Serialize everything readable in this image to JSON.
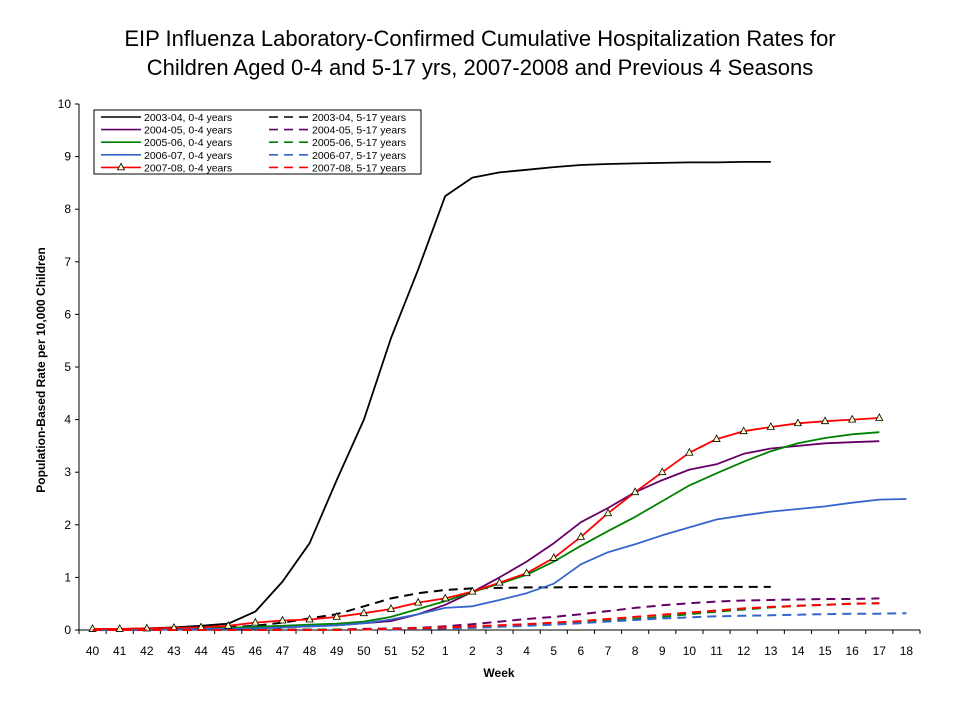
{
  "title_line1": "EIP Influenza Laboratory-Confirmed Cumulative Hospitalization Rates for",
  "title_line2": "Children Aged 0-4 and 5-17 yrs, 2007-2008 and Previous 4 Seasons",
  "chart_data": {
    "type": "line",
    "title": "EIP Influenza Laboratory-Confirmed Cumulative Hospitalization Rates for Children Aged 0-4 and 5-17 yrs, 2007-2008 and Previous 4 Seasons",
    "xlabel": "Week",
    "ylabel": "Population-Based Rate per 10,000 Children",
    "categories": [
      "40",
      "41",
      "42",
      "43",
      "44",
      "45",
      "46",
      "47",
      "48",
      "49",
      "50",
      "51",
      "52",
      "1",
      "2",
      "3",
      "4",
      "5",
      "6",
      "7",
      "8",
      "9",
      "10",
      "11",
      "12",
      "13",
      "14",
      "15",
      "16",
      "17",
      "18"
    ],
    "ylim": [
      0,
      10
    ],
    "yticks": [
      "0",
      "1",
      "2",
      "3",
      "4",
      "5",
      "6",
      "7",
      "8",
      "9",
      "10"
    ],
    "grid": false,
    "legend_position": "top-left",
    "series": [
      {
        "name": "2003-04, 0-4 years",
        "color": "#000000",
        "dash": "solid",
        "marker": "none",
        "values": [
          0.01,
          0.02,
          0.03,
          0.05,
          0.08,
          0.12,
          0.35,
          0.92,
          1.65,
          2.85,
          4.0,
          5.55,
          6.85,
          8.25,
          8.6,
          8.7,
          8.75,
          8.8,
          8.84,
          8.86,
          8.87,
          8.88,
          8.89,
          8.89,
          8.9,
          8.9,
          null,
          null,
          null,
          null,
          null
        ]
      },
      {
        "name": "2003-04, 5-17 years",
        "color": "#000000",
        "dash": "dashed",
        "marker": "none",
        "values": [
          0.0,
          0.0,
          0.01,
          0.02,
          0.03,
          0.05,
          0.08,
          0.14,
          0.22,
          0.3,
          0.45,
          0.6,
          0.7,
          0.76,
          0.79,
          0.8,
          0.81,
          0.81,
          0.82,
          0.82,
          0.82,
          0.82,
          0.82,
          0.82,
          0.82,
          0.82,
          null,
          null,
          null,
          null,
          null
        ]
      },
      {
        "name": "2004-05, 0-4 years",
        "color": "#660066",
        "dash": "solid",
        "marker": "none",
        "values": [
          0.0,
          0.0,
          0.0,
          0.01,
          0.02,
          0.02,
          0.03,
          0.05,
          0.07,
          0.09,
          0.13,
          0.17,
          0.3,
          0.48,
          0.72,
          1.0,
          1.3,
          1.65,
          2.05,
          2.32,
          2.62,
          2.85,
          3.05,
          3.15,
          3.35,
          3.45,
          3.5,
          3.55,
          3.57,
          3.59,
          null
        ]
      },
      {
        "name": "2004-05, 5-17 years",
        "color": "#660066",
        "dash": "dashed",
        "marker": "none",
        "values": [
          0.0,
          0.0,
          0.0,
          0.0,
          0.0,
          0.0,
          0.0,
          0.01,
          0.01,
          0.01,
          0.02,
          0.03,
          0.04,
          0.07,
          0.11,
          0.16,
          0.21,
          0.25,
          0.3,
          0.36,
          0.42,
          0.47,
          0.51,
          0.54,
          0.56,
          0.57,
          0.58,
          0.59,
          0.59,
          0.6,
          null
        ]
      },
      {
        "name": "2005-06, 0-4 years",
        "color": "#008000",
        "dash": "solid",
        "marker": "none",
        "values": [
          0.0,
          0.01,
          0.01,
          0.02,
          0.03,
          0.04,
          0.06,
          0.08,
          0.1,
          0.12,
          0.16,
          0.25,
          0.4,
          0.55,
          0.72,
          0.88,
          1.05,
          1.3,
          1.6,
          1.88,
          2.15,
          2.45,
          2.75,
          2.98,
          3.2,
          3.4,
          3.55,
          3.65,
          3.72,
          3.76,
          null
        ]
      },
      {
        "name": "2005-06, 5-17 years",
        "color": "#008000",
        "dash": "dashed",
        "marker": "none",
        "values": [
          0.0,
          0.0,
          0.0,
          0.0,
          0.0,
          0.0,
          0.0,
          0.0,
          0.01,
          0.01,
          0.01,
          0.02,
          0.03,
          0.04,
          0.05,
          0.07,
          0.09,
          0.12,
          0.15,
          0.18,
          0.21,
          0.25,
          0.3,
          0.35,
          0.39,
          0.43,
          0.46,
          0.48,
          0.5,
          0.51,
          null
        ]
      },
      {
        "name": "2006-07, 0-4 years",
        "color": "#3366CC",
        "dash": "solid",
        "marker": "none",
        "values": [
          0.0,
          0.0,
          0.01,
          0.01,
          0.02,
          0.02,
          0.03,
          0.05,
          0.07,
          0.09,
          0.13,
          0.2,
          0.3,
          0.42,
          0.45,
          0.57,
          0.7,
          0.88,
          1.25,
          1.48,
          1.63,
          1.8,
          1.95,
          2.1,
          2.18,
          2.25,
          2.3,
          2.35,
          2.42,
          2.48,
          2.49
        ]
      },
      {
        "name": "2006-07, 5-17 years",
        "color": "#3366CC",
        "dash": "dashed",
        "marker": "none",
        "values": [
          0.0,
          0.0,
          0.0,
          0.0,
          0.0,
          0.0,
          0.0,
          0.0,
          0.0,
          0.0,
          0.01,
          0.01,
          0.02,
          0.03,
          0.04,
          0.06,
          0.08,
          0.1,
          0.13,
          0.16,
          0.19,
          0.22,
          0.24,
          0.26,
          0.27,
          0.28,
          0.29,
          0.3,
          0.31,
          0.31,
          0.32
        ]
      },
      {
        "name": "2007-08, 0-4 years",
        "color": "#FF0000",
        "dash": "solid",
        "marker": "triangle",
        "values": [
          0.02,
          0.02,
          0.03,
          0.04,
          0.05,
          0.08,
          0.14,
          0.18,
          0.2,
          0.25,
          0.32,
          0.4,
          0.52,
          0.6,
          0.73,
          0.9,
          1.08,
          1.37,
          1.77,
          2.22,
          2.62,
          3.0,
          3.37,
          3.63,
          3.78,
          3.86,
          3.93,
          3.97,
          4.0,
          4.03,
          null
        ]
      },
      {
        "name": "2007-08, 5-17 years",
        "color": "#FF0000",
        "dash": "dashed",
        "marker": "none",
        "values": [
          0.0,
          0.0,
          0.0,
          0.0,
          0.0,
          0.0,
          0.0,
          0.0,
          0.0,
          0.0,
          0.01,
          0.02,
          0.03,
          0.05,
          0.07,
          0.09,
          0.11,
          0.14,
          0.17,
          0.21,
          0.25,
          0.29,
          0.33,
          0.37,
          0.41,
          0.44,
          0.46,
          0.48,
          0.5,
          0.51,
          null
        ]
      }
    ]
  }
}
